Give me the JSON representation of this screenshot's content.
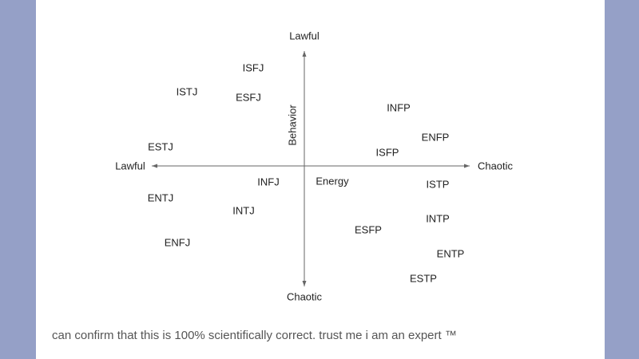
{
  "axes": {
    "top": "Lawful",
    "bottom": "Chaotic",
    "left": "Lawful",
    "right": "Chaotic",
    "vertical_label": "Behavior",
    "horizontal_label": "Energy"
  },
  "types": [
    "ISFJ",
    "ISTJ",
    "ESFJ",
    "INFP",
    "ENFP",
    "ISFP",
    "ESTJ",
    "INFJ",
    "ISTP",
    "ENTJ",
    "INTJ",
    "INTP",
    "ESFP",
    "ENFJ",
    "ENTP",
    "ESTP"
  ],
  "caption": "can confirm that this is 100% scientifically correct. trust me i am an expert ™"
}
